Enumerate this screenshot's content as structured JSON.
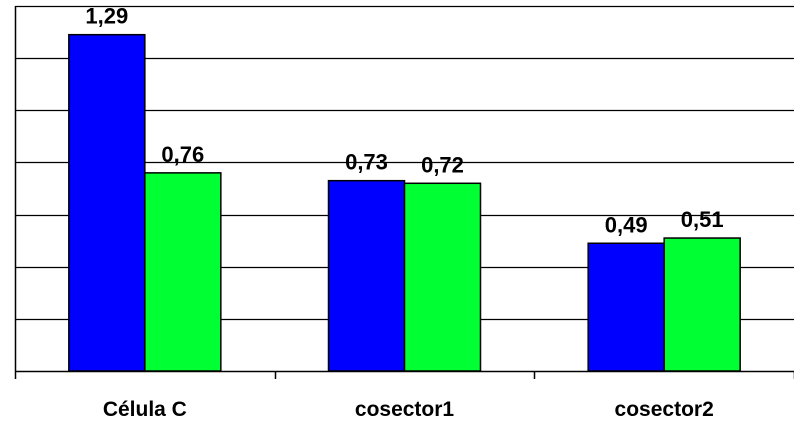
{
  "chart_data": {
    "type": "bar",
    "categories": [
      "Célula C",
      "cosector1",
      "cosector2"
    ],
    "series": [
      {
        "values": [
          1.29,
          0.73,
          0.49
        ],
        "labels": [
          "1,29",
          "0,73",
          "0,49"
        ],
        "color": "#0000ff"
      },
      {
        "values": [
          0.76,
          0.72,
          0.51
        ],
        "labels": [
          "0,76",
          "0,72",
          "0,51"
        ],
        "color": "#00ff33"
      }
    ],
    "ylim": [
      0,
      1.4
    ],
    "grid": true,
    "legend": "none",
    "y_tick_labels_visible": false
  }
}
